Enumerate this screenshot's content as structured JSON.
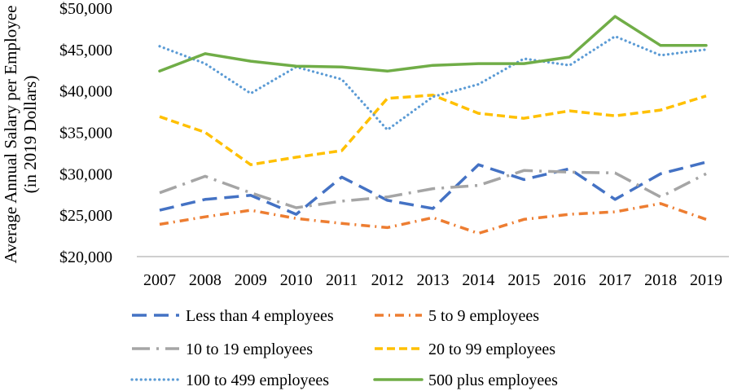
{
  "chart_data": {
    "type": "line",
    "ylabel_line1": "Average Annual Salary per Employee",
    "ylabel_line2": "(in 2019 Dollars)",
    "xlabel": "",
    "ylim": [
      20000,
      50000
    ],
    "yticks": [
      20000,
      25000,
      30000,
      35000,
      40000,
      45000,
      50000
    ],
    "ytick_labels": [
      "$20,000",
      "$25,000",
      "$30,000",
      "$35,000",
      "$40,000",
      "$45,000",
      "$50,000"
    ],
    "categories": [
      "2007",
      "2008",
      "2009",
      "2010",
      "2011",
      "2012",
      "2013",
      "2014",
      "2015",
      "2016",
      "2017",
      "2018",
      "2019"
    ],
    "grid": false,
    "legend_position": "bottom",
    "series": [
      {
        "name": "Less than 4 employees",
        "color": "#4472C4",
        "dash": "long-dash",
        "values": [
          25600,
          26900,
          27400,
          25100,
          29600,
          26800,
          25800,
          31100,
          29300,
          30600,
          26900,
          30000,
          31400
        ]
      },
      {
        "name": "5 to 9 employees",
        "color": "#ED7D31",
        "dash": "dash-dot",
        "values": [
          23900,
          24800,
          25600,
          24600,
          24000,
          23500,
          24700,
          22800,
          24500,
          25100,
          25400,
          26400,
          24500
        ]
      },
      {
        "name": "10 to 19 employees",
        "color": "#A5A5A5",
        "dash": "long-dash-dot",
        "values": [
          27700,
          29700,
          27700,
          25900,
          26700,
          27200,
          28200,
          28600,
          30400,
          30200,
          30100,
          27200,
          30000
        ]
      },
      {
        "name": "20 to 99 employees",
        "color": "#FFC000",
        "dash": "dash",
        "values": [
          36900,
          35000,
          31100,
          32000,
          32800,
          39100,
          39500,
          37300,
          36700,
          37600,
          37000,
          37700,
          39400
        ]
      },
      {
        "name": "100 to 499 employees",
        "color": "#5B9BD5",
        "dash": "dot",
        "values": [
          45400,
          43300,
          39700,
          42900,
          41400,
          35300,
          39300,
          40800,
          43900,
          43100,
          46600,
          44300,
          45000
        ]
      },
      {
        "name": "500 plus employees",
        "color": "#70AD47",
        "dash": "solid",
        "values": [
          42400,
          44500,
          43600,
          43000,
          42900,
          42400,
          43100,
          43300,
          43300,
          44100,
          49000,
          45500,
          45500
        ]
      }
    ]
  }
}
